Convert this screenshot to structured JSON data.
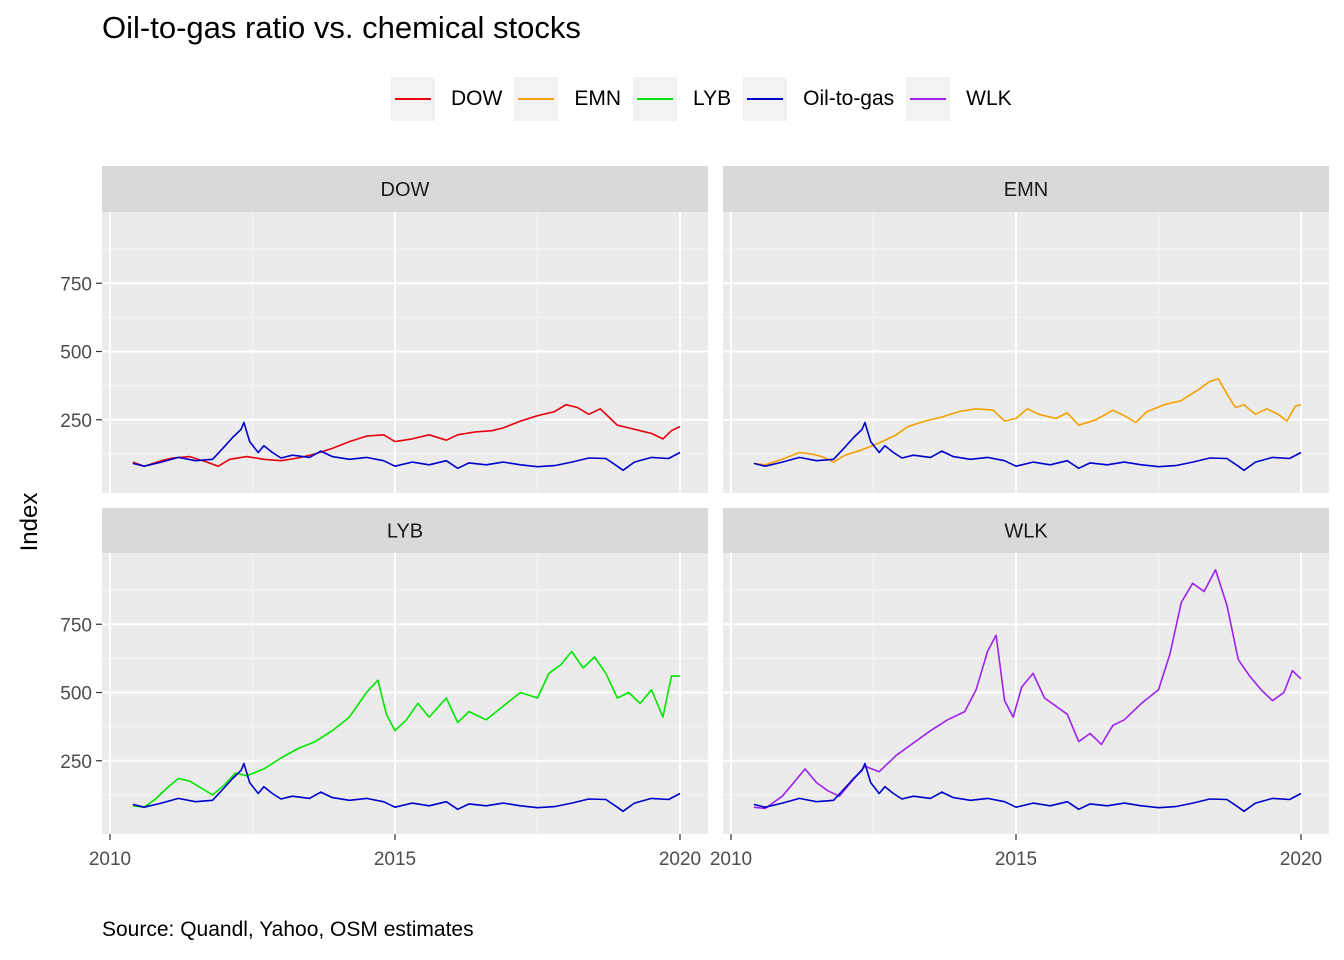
{
  "chart_data": {
    "type": "line",
    "title": "Oil-to-gas ratio vs. chemical stocks",
    "caption": "Source: Quandl, Yahoo, OSM estimates",
    "xlabel": "",
    "ylabel": "Index",
    "xlim": [
      2010,
      2020
    ],
    "ylim": [
      0,
      1000
    ],
    "x_ticks": [
      "2010",
      "2015",
      "2020"
    ],
    "y_ticks": [
      "250",
      "500",
      "750"
    ],
    "grid": true,
    "legend_position": "top",
    "legend": [
      {
        "name": "DOW",
        "color": "#e8000b"
      },
      {
        "name": "EMN",
        "color": "#f5a000"
      },
      {
        "name": "LYB",
        "color": "#00e600"
      },
      {
        "name": "Oil-to-gas",
        "color": "#0000cd"
      },
      {
        "name": "WLK",
        "color": "#a020f0"
      }
    ],
    "oil_to_gas": {
      "name": "Oil-to-gas",
      "color": "#0000cd",
      "points": [
        [
          2010.4,
          90
        ],
        [
          2010.6,
          80
        ],
        [
          2010.9,
          95
        ],
        [
          2011.2,
          112
        ],
        [
          2011.5,
          100
        ],
        [
          2011.8,
          105
        ],
        [
          2012.0,
          150
        ],
        [
          2012.15,
          185
        ],
        [
          2012.3,
          215
        ],
        [
          2012.35,
          240
        ],
        [
          2012.45,
          170
        ],
        [
          2012.6,
          130
        ],
        [
          2012.7,
          155
        ],
        [
          2012.85,
          130
        ],
        [
          2013.0,
          110
        ],
        [
          2013.2,
          120
        ],
        [
          2013.5,
          112
        ],
        [
          2013.7,
          135
        ],
        [
          2013.9,
          115
        ],
        [
          2014.2,
          105
        ],
        [
          2014.5,
          112
        ],
        [
          2014.8,
          100
        ],
        [
          2015.0,
          80
        ],
        [
          2015.3,
          95
        ],
        [
          2015.6,
          85
        ],
        [
          2015.9,
          100
        ],
        [
          2016.1,
          72
        ],
        [
          2016.3,
          92
        ],
        [
          2016.6,
          85
        ],
        [
          2016.9,
          95
        ],
        [
          2017.2,
          85
        ],
        [
          2017.5,
          78
        ],
        [
          2017.8,
          82
        ],
        [
          2018.1,
          95
        ],
        [
          2018.4,
          110
        ],
        [
          2018.7,
          108
        ],
        [
          2018.9,
          80
        ],
        [
          2019.0,
          65
        ],
        [
          2019.2,
          95
        ],
        [
          2019.5,
          112
        ],
        [
          2019.8,
          108
        ],
        [
          2020.0,
          130
        ]
      ]
    },
    "panels": [
      {
        "name": "DOW",
        "color": "#e8000b",
        "points": [
          [
            2010.4,
            95
          ],
          [
            2010.6,
            80
          ],
          [
            2010.9,
            100
          ],
          [
            2011.1,
            110
          ],
          [
            2011.4,
            115
          ],
          [
            2011.7,
            95
          ],
          [
            2011.9,
            80
          ],
          [
            2012.1,
            105
          ],
          [
            2012.4,
            115
          ],
          [
            2012.7,
            105
          ],
          [
            2013.0,
            100
          ],
          [
            2013.3,
            110
          ],
          [
            2013.6,
            125
          ],
          [
            2013.9,
            145
          ],
          [
            2014.2,
            170
          ],
          [
            2014.5,
            190
          ],
          [
            2014.8,
            195
          ],
          [
            2015.0,
            170
          ],
          [
            2015.3,
            180
          ],
          [
            2015.6,
            195
          ],
          [
            2015.9,
            175
          ],
          [
            2016.1,
            195
          ],
          [
            2016.4,
            205
          ],
          [
            2016.7,
            210
          ],
          [
            2016.9,
            220
          ],
          [
            2017.2,
            245
          ],
          [
            2017.5,
            265
          ],
          [
            2017.8,
            280
          ],
          [
            2018.0,
            305
          ],
          [
            2018.2,
            295
          ],
          [
            2018.4,
            270
          ],
          [
            2018.6,
            290
          ],
          [
            2018.75,
            260
          ],
          [
            2018.9,
            230
          ],
          [
            2019.1,
            220
          ],
          [
            2019.3,
            210
          ],
          [
            2019.5,
            200
          ],
          [
            2019.7,
            180
          ],
          [
            2019.85,
            210
          ],
          [
            2020.0,
            225
          ]
        ]
      },
      {
        "name": "EMN",
        "color": "#f5a000",
        "points": [
          [
            2010.4,
            90
          ],
          [
            2010.6,
            85
          ],
          [
            2010.9,
            105
          ],
          [
            2011.2,
            130
          ],
          [
            2011.4,
            125
          ],
          [
            2011.6,
            115
          ],
          [
            2011.8,
            95
          ],
          [
            2012.0,
            120
          ],
          [
            2012.3,
            140
          ],
          [
            2012.6,
            165
          ],
          [
            2012.9,
            195
          ],
          [
            2013.1,
            225
          ],
          [
            2013.4,
            245
          ],
          [
            2013.7,
            260
          ],
          [
            2014.0,
            280
          ],
          [
            2014.3,
            290
          ],
          [
            2014.6,
            285
          ],
          [
            2014.8,
            245
          ],
          [
            2015.0,
            255
          ],
          [
            2015.2,
            290
          ],
          [
            2015.4,
            270
          ],
          [
            2015.7,
            255
          ],
          [
            2015.9,
            275
          ],
          [
            2016.1,
            230
          ],
          [
            2016.4,
            250
          ],
          [
            2016.7,
            285
          ],
          [
            2016.9,
            265
          ],
          [
            2017.1,
            240
          ],
          [
            2017.3,
            280
          ],
          [
            2017.6,
            305
          ],
          [
            2017.9,
            320
          ],
          [
            2018.2,
            360
          ],
          [
            2018.4,
            390
          ],
          [
            2018.55,
            400
          ],
          [
            2018.7,
            345
          ],
          [
            2018.85,
            295
          ],
          [
            2019.0,
            305
          ],
          [
            2019.2,
            270
          ],
          [
            2019.4,
            290
          ],
          [
            2019.6,
            270
          ],
          [
            2019.75,
            245
          ],
          [
            2019.9,
            300
          ],
          [
            2020.0,
            305
          ]
        ]
      },
      {
        "name": "LYB",
        "color": "#00e600",
        "points": [
          [
            2010.4,
            85
          ],
          [
            2010.6,
            80
          ],
          [
            2010.8,
            110
          ],
          [
            2011.0,
            150
          ],
          [
            2011.2,
            185
          ],
          [
            2011.4,
            175
          ],
          [
            2011.6,
            150
          ],
          [
            2011.8,
            125
          ],
          [
            2012.0,
            160
          ],
          [
            2012.2,
            205
          ],
          [
            2012.4,
            195
          ],
          [
            2012.7,
            220
          ],
          [
            2013.0,
            260
          ],
          [
            2013.3,
            295
          ],
          [
            2013.6,
            320
          ],
          [
            2013.9,
            360
          ],
          [
            2014.2,
            410
          ],
          [
            2014.5,
            500
          ],
          [
            2014.7,
            545
          ],
          [
            2014.85,
            420
          ],
          [
            2015.0,
            360
          ],
          [
            2015.2,
            400
          ],
          [
            2015.4,
            460
          ],
          [
            2015.6,
            410
          ],
          [
            2015.9,
            480
          ],
          [
            2016.1,
            390
          ],
          [
            2016.3,
            430
          ],
          [
            2016.6,
            400
          ],
          [
            2016.9,
            450
          ],
          [
            2017.2,
            500
          ],
          [
            2017.5,
            480
          ],
          [
            2017.7,
            570
          ],
          [
            2017.9,
            600
          ],
          [
            2018.1,
            650
          ],
          [
            2018.3,
            590
          ],
          [
            2018.5,
            630
          ],
          [
            2018.7,
            570
          ],
          [
            2018.9,
            480
          ],
          [
            2019.1,
            500
          ],
          [
            2019.3,
            460
          ],
          [
            2019.5,
            510
          ],
          [
            2019.7,
            410
          ],
          [
            2019.85,
            560
          ],
          [
            2020.0,
            560
          ]
        ]
      },
      {
        "name": "WLK",
        "color": "#a020f0",
        "points": [
          [
            2010.4,
            80
          ],
          [
            2010.6,
            75
          ],
          [
            2010.9,
            120
          ],
          [
            2011.1,
            170
          ],
          [
            2011.3,
            220
          ],
          [
            2011.5,
            170
          ],
          [
            2011.7,
            140
          ],
          [
            2011.9,
            120
          ],
          [
            2012.1,
            170
          ],
          [
            2012.35,
            230
          ],
          [
            2012.6,
            210
          ],
          [
            2012.9,
            270
          ],
          [
            2013.2,
            315
          ],
          [
            2013.5,
            360
          ],
          [
            2013.8,
            400
          ],
          [
            2014.1,
            430
          ],
          [
            2014.3,
            510
          ],
          [
            2014.5,
            650
          ],
          [
            2014.65,
            710
          ],
          [
            2014.8,
            470
          ],
          [
            2014.95,
            410
          ],
          [
            2015.1,
            520
          ],
          [
            2015.3,
            570
          ],
          [
            2015.5,
            480
          ],
          [
            2015.7,
            450
          ],
          [
            2015.9,
            420
          ],
          [
            2016.1,
            320
          ],
          [
            2016.3,
            350
          ],
          [
            2016.5,
            310
          ],
          [
            2016.7,
            380
          ],
          [
            2016.9,
            400
          ],
          [
            2017.2,
            460
          ],
          [
            2017.5,
            510
          ],
          [
            2017.7,
            640
          ],
          [
            2017.9,
            830
          ],
          [
            2018.1,
            900
          ],
          [
            2018.3,
            870
          ],
          [
            2018.5,
            950
          ],
          [
            2018.7,
            820
          ],
          [
            2018.9,
            620
          ],
          [
            2019.1,
            560
          ],
          [
            2019.3,
            510
          ],
          [
            2019.5,
            470
          ],
          [
            2019.7,
            500
          ],
          [
            2019.85,
            580
          ],
          [
            2020.0,
            550
          ]
        ]
      }
    ]
  }
}
